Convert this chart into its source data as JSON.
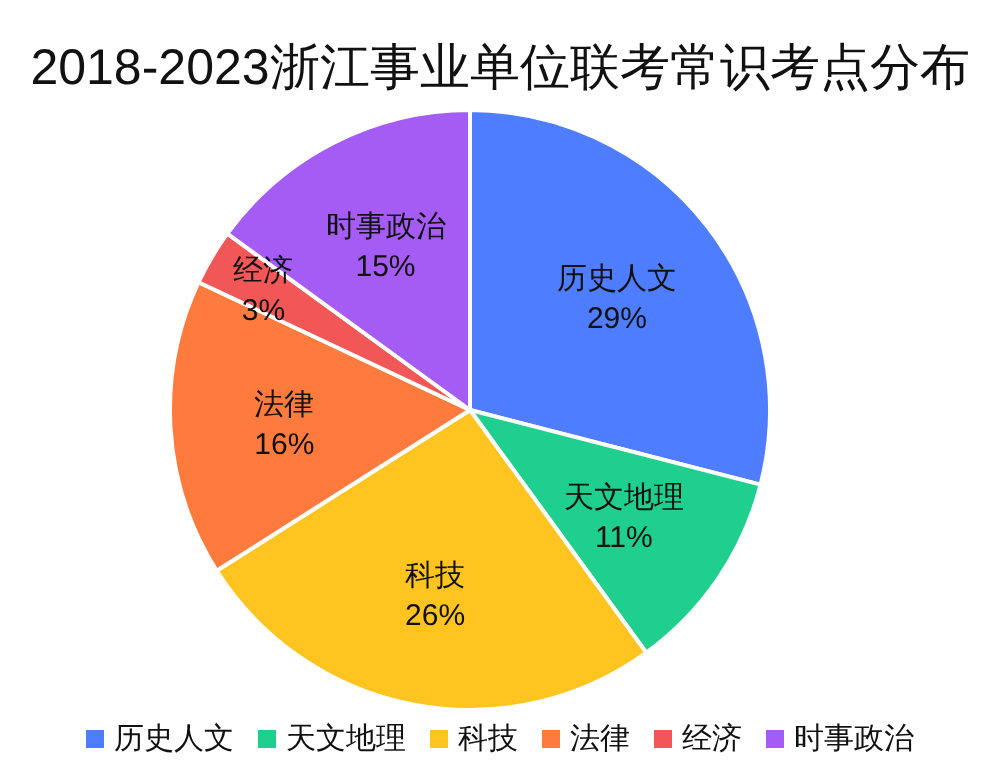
{
  "chart_data": {
    "type": "pie",
    "title": "2018-2023浙江事业单位联考常识考点分布",
    "categories": [
      "历史人文",
      "天文地理",
      "科技",
      "法律",
      "经济",
      "时事政治"
    ],
    "values": [
      29,
      11,
      26,
      16,
      3,
      15
    ],
    "value_labels": [
      "29%",
      "11%",
      "26%",
      "16%",
      "3%",
      "15%"
    ],
    "colors": [
      "#4f7dff",
      "#1fcf8e",
      "#ffc41f",
      "#ff7b3d",
      "#f25757",
      "#a45cf5"
    ],
    "legend": "bottom"
  }
}
